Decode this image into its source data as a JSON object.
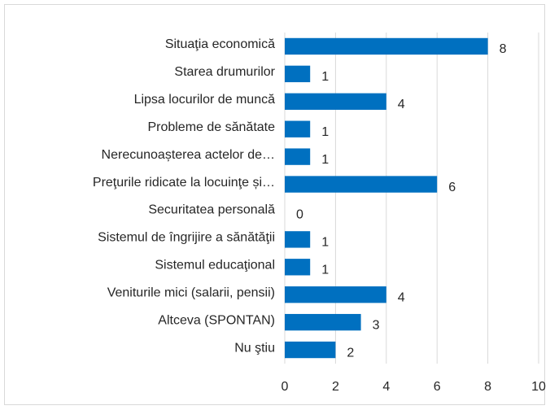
{
  "chart_data": {
    "type": "bar",
    "orientation": "horizontal",
    "categories": [
      "Situaţia economică",
      "Starea drumurilor",
      "Lipsa locurilor de muncă",
      "Probleme de sănătate",
      "Nerecunoașterea actelor de…",
      "Preţurile ridicate la locuinţe și…",
      "Securitatea personală",
      "Sistemul de îngrijire a sănătăţii",
      "Sistemul educaţional",
      "Veniturile mici (salarii, pensii)",
      "Altceva (SPONTAN)",
      "Nu ştiu"
    ],
    "values": [
      8,
      1,
      4,
      1,
      1,
      6,
      0,
      1,
      1,
      4,
      3,
      2
    ],
    "color": "#0070c0",
    "xlim": [
      0,
      10
    ],
    "xticks": [
      0,
      2,
      4,
      6,
      8,
      10
    ],
    "grid": true
  }
}
